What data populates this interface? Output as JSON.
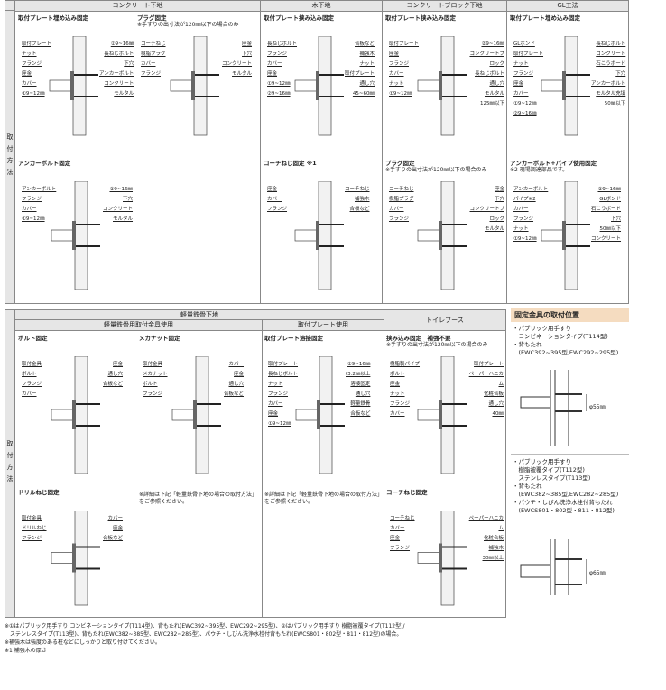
{
  "top": {
    "side_label": "取付方法",
    "columns": [
      "コンクリート下地",
      "木下地",
      "コンクリートブロック下地",
      "GL工法"
    ],
    "panels": [
      {
        "title": "取付プレート埋め込み固定",
        "note": "",
        "labels": [
          "取付プレート",
          "ナット",
          "フランジ",
          "座金",
          "カバー",
          "①9~12㎜",
          "②9~16㎜",
          "長ねじボルト",
          "下穴",
          "アンカーボルト",
          "コンクリート",
          "モルタル"
        ]
      },
      {
        "title": "プラグ固定",
        "note": "※手すりの出寸法が120㎜以下の場合のみ",
        "labels": [
          "コーチねじ",
          "樹脂プラグ",
          "カバー",
          "フランジ",
          "座金",
          "下穴",
          "コンクリート",
          "モルタル"
        ]
      },
      {
        "title": "取付プレート挟み込み固定",
        "note": "",
        "labels": [
          "長ねじボルト",
          "フランジ",
          "カバー",
          "座金",
          "①9~12㎜",
          "②9~16㎜",
          "合板など",
          "補強木",
          "ナット",
          "取付プレート",
          "通し穴",
          "45~60㎜"
        ]
      },
      {
        "title": "取付プレート挟み込み固定",
        "note": "",
        "labels": [
          "取付プレート",
          "座金",
          "フランジ",
          "カバー",
          "ナット",
          "①9~12㎜",
          "②9~16㎜",
          "コンクリートブロック",
          "長ねじボルト",
          "通し穴",
          "モルタル",
          "125㎜以下"
        ]
      },
      {
        "title": "取付プレート埋め込み固定",
        "note": "",
        "labels": [
          "GLボンド",
          "取付プレート",
          "ナット",
          "フランジ",
          "座金",
          "カバー",
          "①9~12㎜",
          "②9~16㎜",
          "長ねじボルト",
          "コンクリート",
          "石こうボード",
          "下穴",
          "アンカーボルト",
          "モルタル充填",
          "50㎜以下"
        ]
      },
      {
        "title": "アンカーボルト固定",
        "note": "",
        "labels": [
          "アンカーボルト",
          "フランジ",
          "カバー",
          "①9~12㎜",
          "②9~16㎜",
          "下穴",
          "コンクリート",
          "モルタル"
        ]
      },
      {
        "title": "コーチねじ固定 ※1",
        "note": "",
        "labels": [
          "座金",
          "カバー",
          "フランジ",
          "コーチねじ",
          "補強木",
          "合板など"
        ]
      },
      {
        "title": "プラグ固定",
        "note": "※手すりの出寸法が120㎜以下の場合のみ",
        "labels": [
          "コーチねじ",
          "樹脂プラグ",
          "カバー",
          "フランジ",
          "座金",
          "下穴",
          "コンクリートブロック",
          "モルタル"
        ]
      },
      {
        "title": "アンカーボルト+パイプ使用固定",
        "note": "※2 現場調達部品です。",
        "labels": [
          "アンカーボルト",
          "パイプ※2",
          "カバー",
          "フランジ",
          "ナット",
          "①9~12㎜",
          "②9~16㎜",
          "GLボンド",
          "石こうボード",
          "下穴",
          "50㎜以下",
          "コンクリート"
        ]
      }
    ]
  },
  "bottom": {
    "side_label": "取付方法",
    "header": "軽量鉄骨下地",
    "sub1": "軽量鉄骨用取付金具使用",
    "sub2": "取付プレート使用",
    "toilet": "トイレブース",
    "panels": [
      {
        "title": "ボルト固定",
        "note": "",
        "labels": [
          "取付金具",
          "ボルト",
          "フランジ",
          "カバー",
          "座金",
          "通し穴",
          "合板など"
        ]
      },
      {
        "title": "メカナット固定",
        "note": "",
        "labels": [
          "取付金具",
          "メカナット",
          "ボルト",
          "フランジ",
          "カバー",
          "座金",
          "通し穴",
          "合板など"
        ]
      },
      {
        "title": "取付プレート溶接固定",
        "note": "",
        "labels": [
          "取付プレート",
          "長ねじボルト",
          "ナット",
          "フランジ",
          "カバー",
          "座金",
          "①9~12㎜",
          "②9~16㎜",
          "t3.2㎜以上",
          "溶接固定",
          "通し穴",
          "軽量鉄骨",
          "合板など"
        ]
      },
      {
        "title": "挟み込み固定　補強不要",
        "note": "※手すりの出寸法が120㎜以下の場合のみ",
        "labels": [
          "樹脂製パイプ",
          "ボルト",
          "座金",
          "ナット",
          "フランジ",
          "カバー",
          "取付プレート",
          "ペーパーハニカム",
          "化粧合板",
          "通し穴",
          "40㎜"
        ]
      },
      {
        "title": "ドリルねじ固定",
        "note": "",
        "labels": [
          "取付金具",
          "ドリルねじ",
          "フランジ",
          "カバー",
          "座金",
          "合板など"
        ]
      },
      {
        "title": "",
        "note": "※詳細は下記「軽量鉄骨下地の場合の取付方法」をご参照ください。",
        "labels": []
      },
      {
        "title": "",
        "note": "※詳細は下記「軽量鉄骨下地の場合の取付方法」をご参照ください。",
        "labels": []
      },
      {
        "title": "コーチねじ固定",
        "note": "",
        "labels": [
          "コーチねじ",
          "カバー",
          "座金",
          "フランジ",
          "ペーパーハニカム",
          "化粧合板",
          "補強木",
          "30㎜以上"
        ]
      }
    ]
  },
  "right": {
    "heading": "固定金具の取付位置",
    "group1": [
      "・パブリック用手すり",
      "　コンビネーションタイプ(T114型)",
      "・背もたれ",
      "　(EWC392~395型,EWC292~295型)"
    ],
    "dim1": "φ55㎜",
    "group2": [
      "・パブリック用手すり",
      "　樹脂被覆タイプ(T112型)",
      "　ステンレスタイプ(T113型)",
      "・背もたれ",
      "　(EWC382~385型,EWC282~285型)",
      "・パウチ・しびん洗浄水栓付背もたれ",
      "　(EWCS801・802型・811・812型)"
    ],
    "dim2": "φ65㎜"
  },
  "footnotes": [
    "※①はパブリック用手すり コンビネーションタイプ(T114型)、背もたれ(EWC392~395型、EWC292~295型)、②はパブリック用手すり 樹脂被覆タイプ(T112型)/",
    "　ステンレスタイプ(T113型)、背もたれ(EWC382~385型、EWC282~285型)、パウチ・しびん洗浄水栓付背もたれ(EWCS801・802型・811・812型)の場合。",
    "※補強木は強度のある柱などにしっかりと取り付けてください。",
    "※1 補強木の厚さ"
  ]
}
